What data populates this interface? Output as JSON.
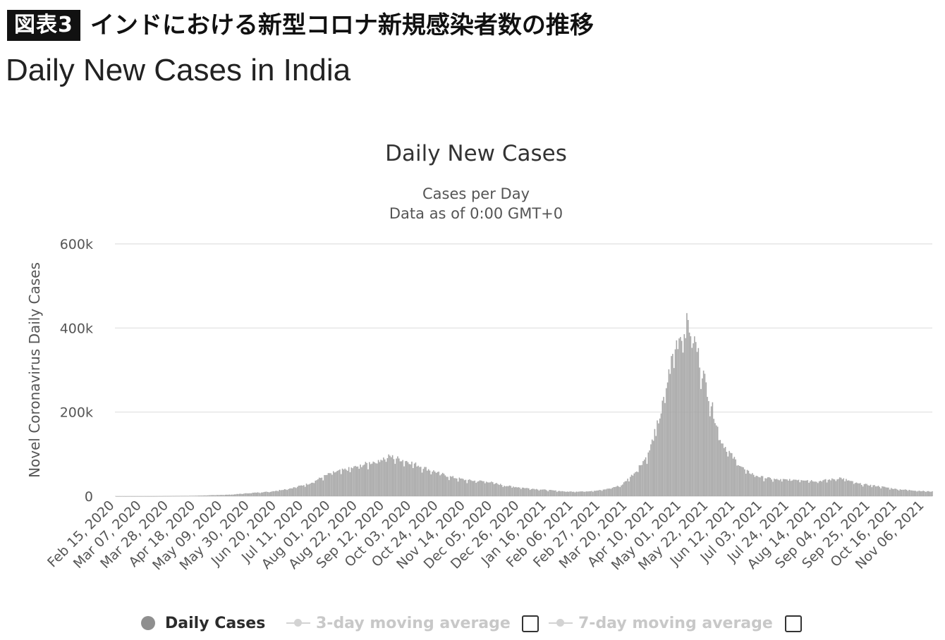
{
  "figure": {
    "badge": "図表3",
    "title": "インドにおける新型コロナ新規感染者数の推移"
  },
  "heading": "Daily New Cases in India",
  "legend": {
    "items": [
      {
        "label": "Daily Cases",
        "active": true
      },
      {
        "label": "3-day moving average",
        "active": false
      },
      {
        "label": "7-day moving average",
        "active": false
      }
    ]
  },
  "colors": {
    "bars": "#a6a6a6",
    "grid": "#e6e6e6",
    "axis_text": "#555555",
    "title_text": "#333333"
  },
  "chart_data": {
    "type": "bar",
    "title": "Daily New Cases",
    "subtitle_lines": [
      "Cases per Day",
      "Data as of 0:00 GMT+0"
    ],
    "ylabel": "Novel Coronavirus Daily Cases",
    "xlabel": "",
    "ylim": [
      0,
      600000
    ],
    "yticks": [
      {
        "value": 0,
        "label": "0"
      },
      {
        "value": 200000,
        "label": "200k"
      },
      {
        "value": 400000,
        "label": "400k"
      },
      {
        "value": 600000,
        "label": "600k"
      }
    ],
    "grid": true,
    "x_start": "2020-02-15",
    "x_end": "2021-11-12",
    "xtick_labels": [
      "Feb 15, 2020",
      "Mar 07, 2020",
      "Mar 28, 2020",
      "Apr 18, 2020",
      "May 09, 2020",
      "May 30, 2020",
      "Jun 20, 2020",
      "Jul 11, 2020",
      "Aug 01, 2020",
      "Aug 22, 2020",
      "Sep 12, 2020",
      "Oct 03, 2020",
      "Oct 24, 2020",
      "Nov 14, 2020",
      "Dec 05, 2020",
      "Dec 26, 2020",
      "Jan 16, 2021",
      "Feb 06, 2021",
      "Feb 27, 2021",
      "Mar 20, 2021",
      "Apr 10, 2021",
      "May 01, 2021",
      "May 22, 2021",
      "Jun 12, 2021",
      "Jul 03, 2021",
      "Jul 24, 2021",
      "Aug 14, 2021",
      "Sep 04, 2021",
      "Sep 25, 2021",
      "Oct 16, 2021",
      "Nov 06, 2021"
    ],
    "series_points": [
      [
        "2020-02-15",
        0
      ],
      [
        "2020-03-15",
        100
      ],
      [
        "2020-04-15",
        1000
      ],
      [
        "2020-05-15",
        3800
      ],
      [
        "2020-06-01",
        8000
      ],
      [
        "2020-06-15",
        11000
      ],
      [
        "2020-07-01",
        19000
      ],
      [
        "2020-07-15",
        30000
      ],
      [
        "2020-08-01",
        55000
      ],
      [
        "2020-08-15",
        65000
      ],
      [
        "2020-09-01",
        80000
      ],
      [
        "2020-09-16",
        95000
      ],
      [
        "2020-10-01",
        82000
      ],
      [
        "2020-10-15",
        65000
      ],
      [
        "2020-11-01",
        47000
      ],
      [
        "2020-11-15",
        38000
      ],
      [
        "2020-12-01",
        35000
      ],
      [
        "2020-12-15",
        25000
      ],
      [
        "2021-01-01",
        19000
      ],
      [
        "2021-01-15",
        15000
      ],
      [
        "2021-02-01",
        11000
      ],
      [
        "2021-02-15",
        11500
      ],
      [
        "2021-03-01",
        15000
      ],
      [
        "2021-03-15",
        26000
      ],
      [
        "2021-03-25",
        55000
      ],
      [
        "2021-04-05",
        100000
      ],
      [
        "2021-04-15",
        200000
      ],
      [
        "2021-04-25",
        350000
      ],
      [
        "2021-05-01",
        392000
      ],
      [
        "2021-05-06",
        412000
      ],
      [
        "2021-05-12",
        360000
      ],
      [
        "2021-05-20",
        265000
      ],
      [
        "2021-06-01",
        130000
      ],
      [
        "2021-06-10",
        92000
      ],
      [
        "2021-06-20",
        60000
      ],
      [
        "2021-07-01",
        46000
      ],
      [
        "2021-07-15",
        39000
      ],
      [
        "2021-08-01",
        40000
      ],
      [
        "2021-08-15",
        36000
      ],
      [
        "2021-08-26",
        40000
      ],
      [
        "2021-09-01",
        44000
      ],
      [
        "2021-09-15",
        30000
      ],
      [
        "2021-10-01",
        24000
      ],
      [
        "2021-10-15",
        17000
      ],
      [
        "2021-11-01",
        13000
      ],
      [
        "2021-11-12",
        11000
      ]
    ]
  }
}
